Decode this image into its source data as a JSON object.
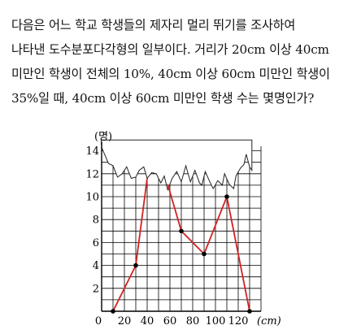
{
  "problem": {
    "lines": [
      "다음은 어느  학교 학생들의 제자리 멀리 뛰기를 조사하여",
      "나타낸 도수분포다각형의 일부이다. 거리가 20cm 이상 40cm",
      "미만인 학생이 전체의 10%, 40cm 이상 60cm 미만인 학생이",
      "35%일 때, 40cm 이상 60cm 미만인 학생 수는 몇명인가?"
    ]
  },
  "chart_data": {
    "type": "line",
    "ylabel": "(명)",
    "xlabel": "(cm)",
    "xlim": [
      0,
      130
    ],
    "ylim": [
      0,
      14
    ],
    "x_ticks": [
      0,
      20,
      40,
      60,
      80,
      100,
      120
    ],
    "x_tick_labels": [
      "0",
      "20",
      "40",
      "60",
      "80",
      "100",
      "120"
    ],
    "y_ticks": [
      2,
      4,
      6,
      8,
      10,
      12,
      14
    ],
    "y_tick_labels": [
      "2",
      "4",
      "6",
      "8",
      "10",
      "12",
      "14"
    ],
    "grid": true,
    "hidden_region": "torn paper covers the top part of the graph",
    "visible_points": [
      {
        "x": 10,
        "y": 0
      },
      {
        "x": 30,
        "y": 4
      },
      {
        "x": 90,
        "y": 5
      },
      {
        "x": 110,
        "y": 10
      },
      {
        "x": 130,
        "y": 0
      }
    ],
    "series": [
      {
        "values": [
          [
            10,
            0
          ],
          [
            30,
            4
          ],
          [
            40,
            11.6
          ]
        ],
        "color": "#d42020"
      },
      {
        "values": [
          [
            58,
            11.1
          ],
          [
            70,
            7
          ],
          [
            90,
            5
          ],
          [
            110,
            10
          ],
          [
            130,
            0
          ]
        ],
        "color": "#d42020"
      }
    ],
    "marker_points": [
      [
        10,
        0
      ],
      [
        30,
        4
      ],
      [
        70,
        7
      ],
      [
        90,
        5
      ],
      [
        110,
        10
      ],
      [
        130,
        0
      ]
    ],
    "colors": {
      "line": "#d42020",
      "marker": "#000000",
      "grid": "#000000"
    }
  }
}
